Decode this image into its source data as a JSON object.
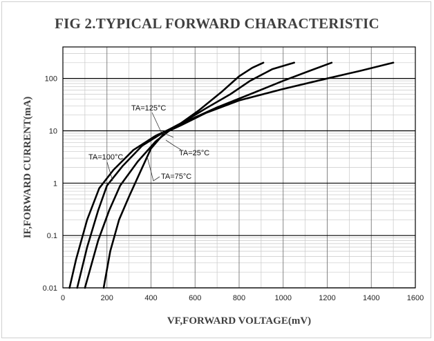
{
  "chart_data": {
    "type": "line",
    "title": "FIG 2.TYPICAL FORWARD CHARACTERISTIC",
    "xlabel": "VF,FORWARD VOLTAGE(mV)",
    "ylabel": "IF,FORWARD CURRENT(mA)",
    "xlim": [
      0,
      1600
    ],
    "ylim": [
      0.01,
      400
    ],
    "yscale": "log",
    "grid": true,
    "x_ticks": [
      "0",
      "200",
      "400",
      "600",
      "800",
      "1000",
      "1200",
      "1400",
      "1600"
    ],
    "y_ticks": [
      "0.01",
      "0.1",
      "1",
      "10",
      "100"
    ],
    "series": [
      {
        "name": "TA=125°C",
        "points": [
          [
            30,
            0.01
          ],
          [
            60,
            0.035
          ],
          [
            110,
            0.2
          ],
          [
            165,
            0.8
          ],
          [
            230,
            1.8
          ],
          [
            320,
            4.3
          ],
          [
            420,
            8
          ],
          [
            520,
            12.5
          ],
          [
            620,
            25
          ],
          [
            720,
            55
          ],
          [
            800,
            110
          ],
          [
            860,
            160
          ],
          [
            910,
            200
          ]
        ]
      },
      {
        "name": "TA=100°C",
        "points": [
          [
            65,
            0.01
          ],
          [
            110,
            0.06
          ],
          [
            160,
            0.3
          ],
          [
            200,
            0.9
          ],
          [
            270,
            2.1
          ],
          [
            360,
            5.2
          ],
          [
            450,
            9
          ],
          [
            550,
            15
          ],
          [
            650,
            27
          ],
          [
            760,
            50
          ],
          [
            850,
            90
          ],
          [
            950,
            150
          ],
          [
            1050,
            200
          ]
        ]
      },
      {
        "name": "TA=75°C",
        "points": [
          [
            100,
            0.01
          ],
          [
            160,
            0.08
          ],
          [
            210,
            0.3
          ],
          [
            260,
            0.9
          ],
          [
            340,
            2.6
          ],
          [
            420,
            6.2
          ],
          [
            500,
            11.5
          ],
          [
            600,
            18
          ],
          [
            700,
            28
          ],
          [
            850,
            50
          ],
          [
            1000,
            90
          ],
          [
            1120,
            140
          ],
          [
            1220,
            200
          ]
        ]
      },
      {
        "name": "TA=25°C",
        "points": [
          [
            185,
            0.01
          ],
          [
            215,
            0.05
          ],
          [
            255,
            0.2
          ],
          [
            300,
            0.55
          ],
          [
            350,
            1.6
          ],
          [
            400,
            4.6
          ],
          [
            460,
            9
          ],
          [
            540,
            13
          ],
          [
            650,
            22
          ],
          [
            800,
            38
          ],
          [
            1000,
            63
          ],
          [
            1200,
            100
          ],
          [
            1350,
            140
          ],
          [
            1500,
            200
          ]
        ]
      }
    ],
    "annotations": [
      "TA=125°C",
      "TA=100°C",
      "TA=25°C",
      "TA=75°C"
    ]
  }
}
